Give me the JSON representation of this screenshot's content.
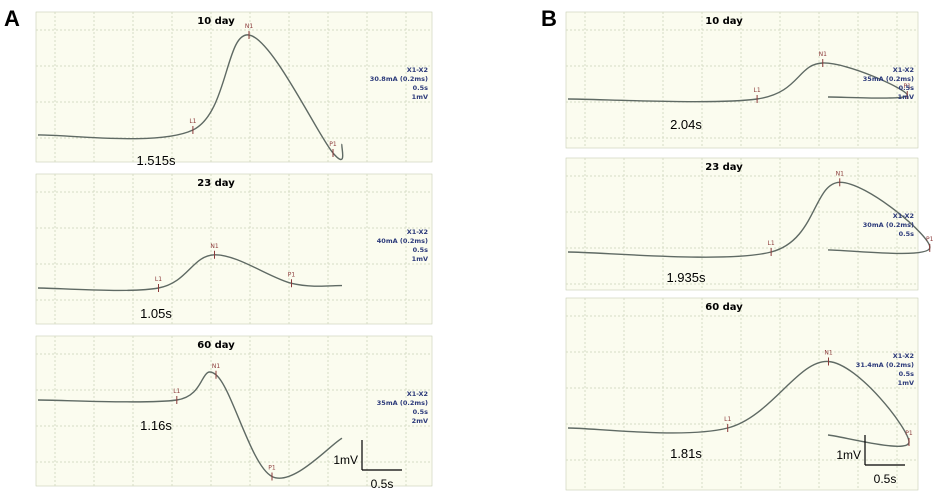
{
  "panel_letters": [
    "A",
    "B"
  ],
  "chart_data": [
    {
      "type": "line",
      "panel": "A",
      "title": "10 day",
      "markers": [
        {
          "name": "L1",
          "time_s": 1.515,
          "rel_amp": 0.05
        },
        {
          "name": "N1",
          "time_s": 2.45,
          "rel_amp": 1.0
        },
        {
          "name": "P1",
          "time_s": 3.85,
          "rel_amp": -0.18
        }
      ],
      "stimulus": [
        "X1-X2",
        "30.8mA (0.2ms)",
        "0.5s",
        "1mV"
      ],
      "latency_label": "1.515s"
    },
    {
      "type": "line",
      "panel": "A",
      "title": "23 day",
      "markers": [
        {
          "name": "L1",
          "time_s": 1.05,
          "rel_amp": 0.0
        },
        {
          "name": "N1",
          "time_s": 1.85,
          "rel_amp": 0.35
        },
        {
          "name": "P1",
          "time_s": 2.95,
          "rel_amp": 0.05
        }
      ],
      "stimulus": [
        "X1-X2",
        "40mA (0.2ms)",
        "0.5s",
        "1mV"
      ],
      "latency_label": "1.05s"
    },
    {
      "type": "line",
      "panel": "A",
      "title": "60 day",
      "markers": [
        {
          "name": "L1",
          "time_s": 1.16,
          "rel_amp": 0.0
        },
        {
          "name": "N1",
          "time_s": 1.65,
          "rel_amp": 0.28
        },
        {
          "name": "P1",
          "time_s": 2.35,
          "rel_amp": -0.85
        }
      ],
      "stimulus": [
        "X1-X2",
        "35mA (0.2ms)",
        "0.5s",
        "2mV"
      ],
      "latency_label": "1.16s"
    },
    {
      "type": "line",
      "panel": "B",
      "title": "10 day",
      "markers": [
        {
          "name": "L1",
          "time_s": 2.04,
          "rel_amp": 0.0
        },
        {
          "name": "N1",
          "time_s": 3.05,
          "rel_amp": 0.45
        },
        {
          "name": "P1",
          "time_s": 4.35,
          "rel_amp": 0.05
        }
      ],
      "stimulus": [
        "X1-X2",
        "35mA (0.2ms)",
        "0.5s",
        "1mV"
      ],
      "latency_label": "2.04s"
    },
    {
      "type": "line",
      "panel": "B",
      "title": "23 day",
      "markers": [
        {
          "name": "L1",
          "time_s": 1.935,
          "rel_amp": 0.0
        },
        {
          "name": "N1",
          "time_s": 2.85,
          "rel_amp": 0.85
        },
        {
          "name": "P1",
          "time_s": 4.05,
          "rel_amp": 0.05
        }
      ],
      "stimulus": [
        "X1-X2",
        "30mA (0.2ms)",
        "0.5s"
      ],
      "latency_label": "1.935s"
    },
    {
      "type": "line",
      "panel": "B",
      "title": "60 day",
      "markers": [
        {
          "name": "L1",
          "time_s": 1.81,
          "rel_amp": 0.0
        },
        {
          "name": "N1",
          "time_s": 3.25,
          "rel_amp": 0.95
        },
        {
          "name": "P1",
          "time_s": 4.4,
          "rel_amp": -0.2
        }
      ],
      "stimulus": [
        "X1-X2",
        "31.4mA (0.2ms)",
        "0.5s",
        "1mV"
      ],
      "latency_label": "1.81s"
    }
  ],
  "scale_bars": [
    {
      "panel": "A",
      "amplitude_label": "1mV",
      "time_label": "0.5s"
    },
    {
      "panel": "B",
      "amplitude_label": "1mV",
      "time_label": "0.5s"
    }
  ],
  "colors": {
    "background": "#fbfcef",
    "grid": "#d6dcc4",
    "trace": "#5f6a64",
    "marker": "#8b3a3a",
    "info": "#2c3a7a"
  }
}
